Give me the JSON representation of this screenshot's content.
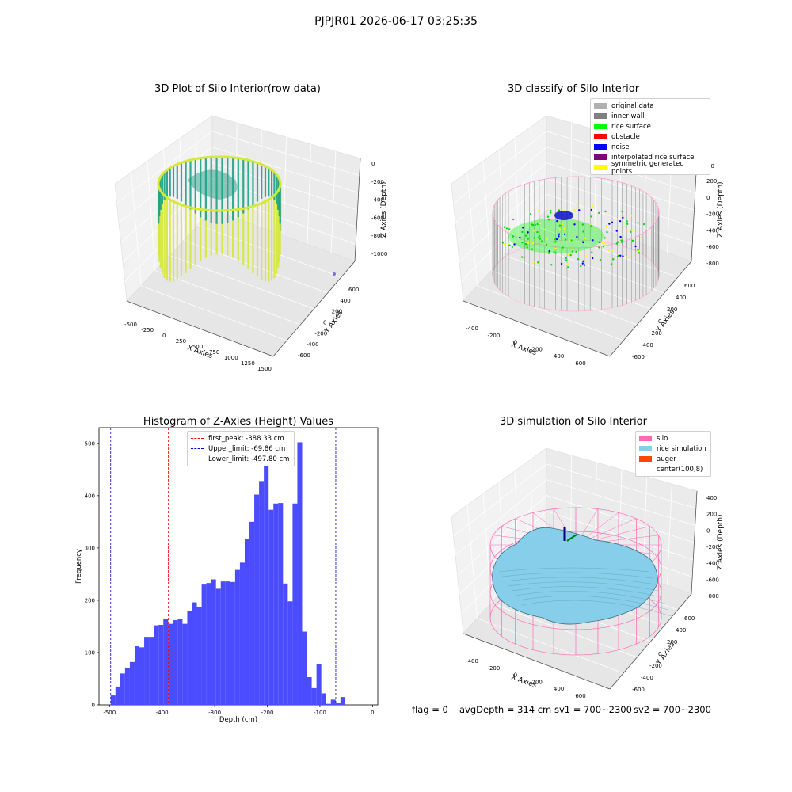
{
  "figure": {
    "suptitle": "PJPJR01 2026-06-17 03:25:35"
  },
  "panels": {
    "raw": {
      "title": "3D Plot of Silo Interior(row data)",
      "xlabel": "X Axies",
      "ylabel": "Y Axies",
      "zlabel": "Z Axies (Depth)",
      "xticks": [
        "-500",
        "-250",
        "0",
        "250",
        "500",
        "750",
        "1000",
        "1250",
        "1500"
      ],
      "yticks": [
        "-600",
        "-400",
        "-200",
        "0",
        "200",
        "400",
        "600"
      ],
      "zticks": [
        "0",
        "-200",
        "-400",
        "-600",
        "-800",
        "-1000"
      ],
      "colors": {
        "high": "#d6e83a",
        "low": "#1fa187"
      }
    },
    "classify": {
      "title": "3D classify of Silo Interior",
      "xlabel": "X Axies",
      "ylabel": "Y Axies",
      "zlabel": "Z Axies (Depth)",
      "xticks": [
        "-400",
        "-200",
        "0",
        "200",
        "400",
        "600"
      ],
      "yticks": [
        "-600",
        "-400",
        "-200",
        "0",
        "200",
        "400",
        "600"
      ],
      "zticks": [
        "200",
        "0",
        "-200",
        "-400",
        "-600",
        "-800"
      ],
      "zticks_partial_top": "00",
      "legend": [
        {
          "label": "original data",
          "color": "#b0b0b0"
        },
        {
          "label": "inner wall",
          "color": "#808080"
        },
        {
          "label": "rice surface",
          "color": "#00ff00"
        },
        {
          "label": "obstacle",
          "color": "#ff0000"
        },
        {
          "label": "noise",
          "color": "#0000ff"
        },
        {
          "label": "interpolated rice surface",
          "color": "#800080"
        },
        {
          "label": "symmetric generated points",
          "color": "#ffff00"
        }
      ]
    },
    "simulation": {
      "title": "3D simulation of Silo Interior",
      "xlabel": "X Axies",
      "ylabel": "Y Axies",
      "zlabel": "Z Axies (Depth)",
      "xticks": [
        "-400",
        "-200",
        "0",
        "200",
        "400",
        "600"
      ],
      "yticks": [
        "-600",
        "-400",
        "-200",
        "0",
        "200",
        "400",
        "600"
      ],
      "zticks": [
        "400",
        "200",
        "0",
        "-200",
        "-400",
        "-600",
        "-800"
      ],
      "legend": [
        {
          "label": "silo",
          "color": "#ff69b4"
        },
        {
          "label": "rice simulation",
          "color": "#87ceeb"
        },
        {
          "label": "auger",
          "color": "#ff4500"
        },
        {
          "label": "center(100,8)",
          "color": "#ffffff"
        }
      ],
      "colors": {
        "mesh": "#ff69b4",
        "surface": "#87ceeb",
        "auger": "#000080",
        "center": "#008000"
      }
    }
  },
  "chart_data": {
    "type": "bar",
    "title": "Histogram of Z-Axies (Height) Values",
    "xlabel": "Depth (cm)",
    "ylabel": "Frequency",
    "xlim": [
      -520,
      10
    ],
    "ylim": [
      0,
      530
    ],
    "xticks": [
      -500,
      -400,
      -300,
      -200,
      -100,
      0
    ],
    "yticks": [
      0,
      100,
      200,
      300,
      400,
      500
    ],
    "bar_color": "#4b4bff",
    "bins": [
      {
        "x0": -497.8,
        "x1": -488.7,
        "count": 18
      },
      {
        "x0": -488.7,
        "x1": -479.6,
        "count": 35
      },
      {
        "x0": -479.6,
        "x1": -470.5,
        "count": 60
      },
      {
        "x0": -470.5,
        "x1": -461.4,
        "count": 70
      },
      {
        "x0": -461.4,
        "x1": -452.3,
        "count": 82
      },
      {
        "x0": -452.3,
        "x1": -443.2,
        "count": 112
      },
      {
        "x0": -443.2,
        "x1": -434.1,
        "count": 110
      },
      {
        "x0": -434.1,
        "x1": -425.0,
        "count": 130
      },
      {
        "x0": -425.0,
        "x1": -415.9,
        "count": 130
      },
      {
        "x0": -415.9,
        "x1": -406.8,
        "count": 152
      },
      {
        "x0": -406.8,
        "x1": -397.7,
        "count": 153
      },
      {
        "x0": -397.7,
        "x1": -388.6,
        "count": 165
      },
      {
        "x0": -388.6,
        "x1": -379.5,
        "count": 155
      },
      {
        "x0": -379.5,
        "x1": -370.4,
        "count": 162
      },
      {
        "x0": -370.4,
        "x1": -361.3,
        "count": 164
      },
      {
        "x0": -361.3,
        "x1": -352.2,
        "count": 155
      },
      {
        "x0": -352.2,
        "x1": -343.1,
        "count": 180
      },
      {
        "x0": -343.1,
        "x1": -334.0,
        "count": 196
      },
      {
        "x0": -334.0,
        "x1": -324.9,
        "count": 187
      },
      {
        "x0": -324.9,
        "x1": -315.8,
        "count": 230
      },
      {
        "x0": -315.8,
        "x1": -306.7,
        "count": 233
      },
      {
        "x0": -306.7,
        "x1": -297.6,
        "count": 240
      },
      {
        "x0": -297.6,
        "x1": -288.5,
        "count": 222
      },
      {
        "x0": -288.5,
        "x1": -279.4,
        "count": 236
      },
      {
        "x0": -279.4,
        "x1": -270.3,
        "count": 236
      },
      {
        "x0": -270.3,
        "x1": -261.2,
        "count": 235
      },
      {
        "x0": -261.2,
        "x1": -252.1,
        "count": 258
      },
      {
        "x0": -252.1,
        "x1": -243.0,
        "count": 272
      },
      {
        "x0": -243.0,
        "x1": -233.9,
        "count": 317
      },
      {
        "x0": -233.9,
        "x1": -224.8,
        "count": 350
      },
      {
        "x0": -224.8,
        "x1": -215.7,
        "count": 402
      },
      {
        "x0": -215.7,
        "x1": -206.6,
        "count": 428
      },
      {
        "x0": -206.6,
        "x1": -197.5,
        "count": 490
      },
      {
        "x0": -197.5,
        "x1": -188.4,
        "count": 373
      },
      {
        "x0": -188.4,
        "x1": -179.3,
        "count": 385
      },
      {
        "x0": -179.3,
        "x1": -170.2,
        "count": 386
      },
      {
        "x0": -170.2,
        "x1": -161.1,
        "count": 232
      },
      {
        "x0": -161.1,
        "x1": -152.0,
        "count": 198
      },
      {
        "x0": -152.0,
        "x1": -142.9,
        "count": 385
      },
      {
        "x0": -142.9,
        "x1": -133.8,
        "count": 502
      },
      {
        "x0": -133.8,
        "x1": -124.7,
        "count": 140
      },
      {
        "x0": -124.7,
        "x1": -115.6,
        "count": 53
      },
      {
        "x0": -115.6,
        "x1": -106.5,
        "count": 32
      },
      {
        "x0": -106.5,
        "x1": -97.4,
        "count": 78
      },
      {
        "x0": -97.4,
        "x1": -88.3,
        "count": 22
      },
      {
        "x0": -88.3,
        "x1": -79.2,
        "count": 2
      },
      {
        "x0": -79.2,
        "x1": -70.1,
        "count": 10
      },
      {
        "x0": -70.1,
        "x1": -61.0,
        "count": 3
      },
      {
        "x0": -61.0,
        "x1": -51.9,
        "count": 15
      }
    ],
    "lines": [
      {
        "label": "first_peak: -388.33 cm",
        "x": -388.33,
        "color": "#ff0000"
      },
      {
        "label": "Upper_limit: -69.86 cm",
        "x": -69.86,
        "color": "#0000cc"
      },
      {
        "label": "Lower_limit: -497.80 cm",
        "x": -497.8,
        "color": "#0000cc"
      }
    ]
  },
  "status": {
    "flag": "flag = 0",
    "avg_depth": "avgDepth = 314 cm",
    "sv1": "sv1 = 700~2300",
    "sv2": "sv2 = 700~2300"
  }
}
